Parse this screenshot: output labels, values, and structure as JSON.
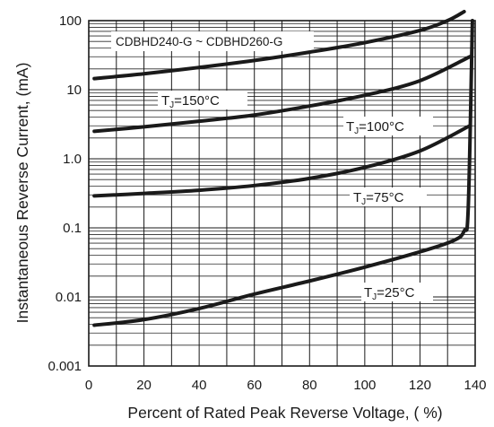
{
  "chart_data": {
    "type": "line",
    "title": "",
    "xlabel": "Percent of Rated Peak Reverse Voltage, ( %)",
    "ylabel": "Instantaneous Reverse Current, (mA)",
    "xlim": [
      0,
      140
    ],
    "ylim": [
      0.001,
      100
    ],
    "yscale": "log",
    "grid": true,
    "x_ticks": [
      "0",
      "20",
      "40",
      "60",
      "80",
      "100",
      "120",
      "140"
    ],
    "y_ticks": [
      "0.001",
      "0.01",
      "0.1",
      "1.0",
      "10",
      "100"
    ],
    "annotations": {
      "part": "CDBHD240-G ~ CDBHD260-G",
      "t150_sub": "J",
      "t150_val": "=150°C",
      "t100_sub": "J",
      "t100_val": "=100°C",
      "t75_sub": "J",
      "t75_val": "=75°C",
      "t25_sub": "J",
      "t25_val": "=25°C",
      "t_prefix": "T"
    },
    "series": [
      {
        "x": [
          2,
          20,
          40,
          60,
          80,
          100,
          120,
          130,
          136
        ],
        "values": [
          14.5,
          17,
          21,
          26.5,
          35,
          48,
          72,
          100,
          135
        ]
      },
      {
        "x": [
          2,
          20,
          40,
          60,
          80,
          100,
          120,
          138
        ],
        "values": [
          2.5,
          2.9,
          3.5,
          4.3,
          5.8,
          8.3,
          13.5,
          30
        ]
      },
      {
        "x": [
          2,
          20,
          40,
          60,
          80,
          100,
          120,
          138
        ],
        "values": [
          0.29,
          0.315,
          0.35,
          0.41,
          0.52,
          0.75,
          1.3,
          3.0
        ]
      },
      {
        "x": [
          2,
          20,
          40,
          60,
          80,
          100,
          120,
          132,
          136,
          137.5,
          139
        ],
        "values": [
          0.0039,
          0.0047,
          0.0068,
          0.011,
          0.017,
          0.027,
          0.045,
          0.065,
          0.09,
          0.2,
          100
        ]
      }
    ]
  }
}
